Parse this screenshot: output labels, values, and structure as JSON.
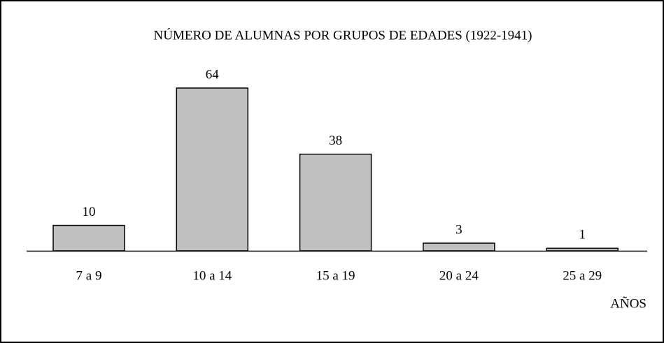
{
  "chart_data": {
    "type": "bar",
    "title": "NÚMERO DE ALUMNAS POR GRUPOS DE EDADES (1922-1941)",
    "x_label": "AÑOS",
    "categories": [
      "7 a 9",
      "10 a 14",
      "15 a 19",
      "20 a 24",
      "25 a 29"
    ],
    "values": [
      10,
      64,
      38,
      3,
      1
    ],
    "color": "#c0c0c0"
  }
}
